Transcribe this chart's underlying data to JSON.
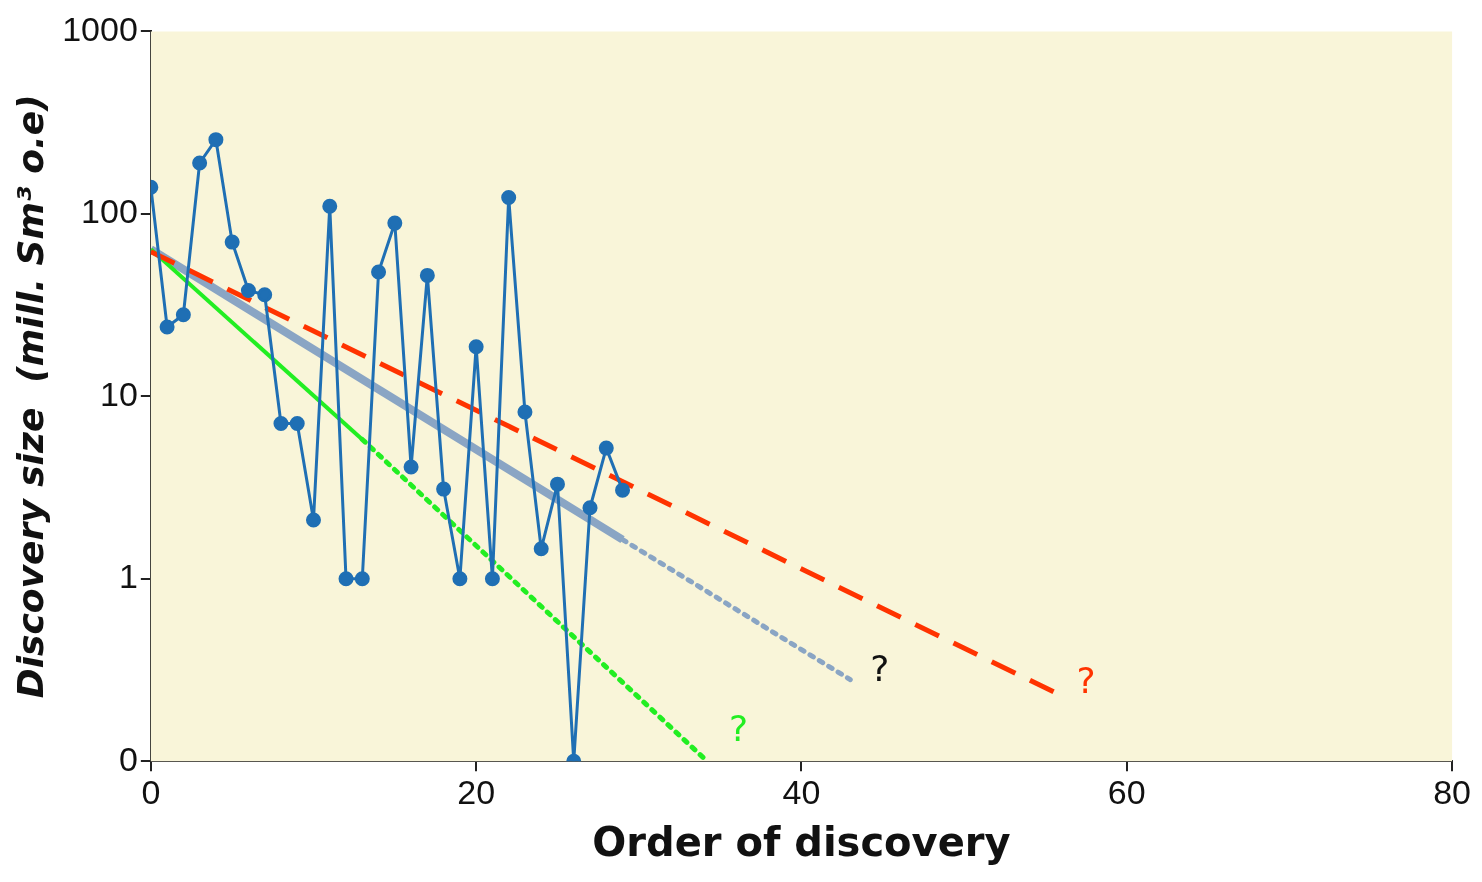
{
  "chart_data": {
    "type": "line",
    "xlabel": "Order of discovery",
    "ylabel": "Discovery size  (mill. Sm³ o.e)",
    "log": "y",
    "xlim": [
      0,
      80
    ],
    "xticks": [
      0,
      20,
      40,
      60,
      80
    ],
    "ylim": [
      0.1,
      1000
    ],
    "yticks": [
      {
        "value": 0.1,
        "label": "0"
      },
      1,
      10,
      100,
      1000
    ],
    "grid": false,
    "legend": false,
    "series": [
      {
        "color": "#1f6fb4",
        "marker": "circle",
        "line_style": "solid",
        "x": [
          0,
          1,
          2,
          3,
          4,
          5,
          6,
          7,
          8,
          9,
          10,
          11,
          12,
          13,
          14,
          15,
          16,
          17,
          18,
          19,
          20,
          21,
          22,
          23,
          24,
          25,
          26,
          27,
          28,
          29
        ],
        "values": [
          140,
          24,
          28,
          190,
          255,
          70,
          38,
          36,
          7.1,
          7.1,
          2.1,
          110,
          1,
          1,
          48,
          89,
          4.1,
          46,
          3.1,
          1,
          18.7,
          1,
          123,
          8.2,
          1.46,
          3.3,
          0.1,
          2.45,
          5.2,
          3.06
        ]
      },
      {
        "color": "#8aa5c4",
        "marker": "none",
        "line_style": "solid",
        "x": [
          0,
          29
        ],
        "values": [
          64,
          1.64
        ]
      },
      {
        "color": "#8aa5c4",
        "marker": "none",
        "line_style": "dotted",
        "x": [
          29,
          43
        ],
        "values": [
          1.64,
          0.28
        ]
      },
      {
        "color": "#22ee22",
        "marker": "none",
        "line_style": "solid",
        "x": [
          0,
          13
        ],
        "values": [
          64,
          5.8
        ]
      },
      {
        "color": "#22ee22",
        "marker": "none",
        "line_style": "dotted",
        "x": [
          13,
          34.2
        ],
        "values": [
          5.8,
          0.1
        ]
      },
      {
        "color": "#ff3300",
        "marker": "none",
        "line_style": "dashed",
        "x": [
          0,
          55.5
        ],
        "values": [
          62,
          0.24
        ]
      }
    ],
    "annotations": [
      {
        "text": "?",
        "x": 43,
        "y": 0.28
      },
      {
        "text": "?",
        "x": 34.2,
        "y": 0.1
      },
      {
        "text": "?",
        "x": 55.5,
        "y": 0.24
      }
    ]
  }
}
